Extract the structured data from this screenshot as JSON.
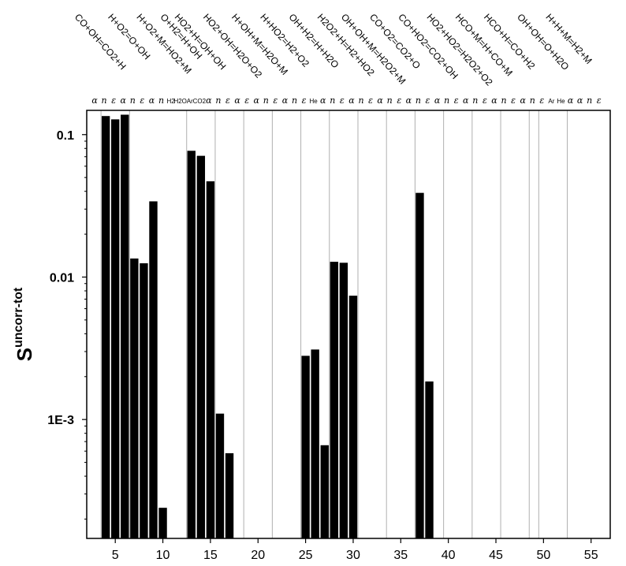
{
  "chart_data": {
    "type": "bar",
    "ylabel": "S",
    "ylabel_superscript": "uncorr-tot",
    "y_scale": "log",
    "ylim": [
      0.0002,
      0.15
    ],
    "xlim": [
      2,
      56
    ],
    "x_ticks": [
      5,
      10,
      15,
      20,
      25,
      30,
      35,
      40,
      45,
      50,
      55
    ],
    "x_tick_labels": [
      "5",
      "10",
      "15",
      "20",
      "25",
      "30",
      "35",
      "40",
      "45",
      "50",
      "55"
    ],
    "y_ticks": [
      0.001,
      0.01,
      0.1
    ],
    "y_tick_labels": [
      "1E-3",
      "0.01",
      "0.1"
    ],
    "grid": "vertical separators",
    "x": [
      4,
      5,
      6,
      7,
      8,
      9,
      10,
      13,
      14,
      15,
      16,
      17,
      25,
      26,
      27,
      28,
      29,
      30,
      37,
      38
    ],
    "values": [
      0.135,
      0.128,
      0.138,
      0.0135,
      0.0125,
      0.034,
      0.00024,
      0.077,
      0.071,
      0.047,
      0.0011,
      0.00058,
      0.0028,
      0.0031,
      0.00066,
      0.0128,
      0.0126,
      0.0074,
      0.039,
      0.00185
    ],
    "separators": [
      3.5,
      6.5,
      12.5,
      15.5,
      18.5,
      21.5,
      24.5,
      27.5,
      30.5,
      33.5,
      36.5,
      39.5,
      42.5,
      45.5,
      48.5,
      49.5,
      52.5
    ],
    "parameters": [
      {
        "x": 3,
        "label": "α"
      },
      {
        "x": 4,
        "label": "n"
      },
      {
        "x": 5,
        "label": "ε"
      },
      {
        "x": 6,
        "label": "α"
      },
      {
        "x": 7,
        "label": "n"
      },
      {
        "x": 8,
        "label": "ε"
      },
      {
        "x": 9,
        "label": "α"
      },
      {
        "x": 10,
        "label": "n"
      },
      {
        "x": 11,
        "label": "H2",
        "small": true
      },
      {
        "x": 12,
        "label": "H2O",
        "small": true
      },
      {
        "x": 13,
        "label": "Ar",
        "small": true
      },
      {
        "x": 14,
        "label": "CO2",
        "small": true
      },
      {
        "x": 15,
        "label": "α"
      },
      {
        "x": 16,
        "label": "n"
      },
      {
        "x": 17,
        "label": "ε"
      },
      {
        "x": 18,
        "label": "α"
      },
      {
        "x": 19,
        "label": "ε"
      },
      {
        "x": 20,
        "label": "α"
      },
      {
        "x": 21,
        "label": "n"
      },
      {
        "x": 22,
        "label": "ε"
      },
      {
        "x": 23,
        "label": "α"
      },
      {
        "x": 24,
        "label": "n"
      },
      {
        "x": 25,
        "label": "ε"
      },
      {
        "x": 26,
        "label": "He",
        "small": true
      },
      {
        "x": 27,
        "label": "α"
      },
      {
        "x": 28,
        "label": "n"
      },
      {
        "x": 29,
        "label": "ε"
      },
      {
        "x": 30,
        "label": "α"
      },
      {
        "x": 31,
        "label": "n"
      },
      {
        "x": 32,
        "label": "ε"
      },
      {
        "x": 33,
        "label": "α"
      },
      {
        "x": 34,
        "label": "n"
      },
      {
        "x": 35,
        "label": "ε"
      },
      {
        "x": 36,
        "label": "α"
      },
      {
        "x": 37,
        "label": "n"
      },
      {
        "x": 38,
        "label": "ε"
      },
      {
        "x": 39,
        "label": "α"
      },
      {
        "x": 40,
        "label": "n"
      },
      {
        "x": 41,
        "label": "ε"
      },
      {
        "x": 42,
        "label": "α"
      },
      {
        "x": 43,
        "label": "n"
      },
      {
        "x": 44,
        "label": "ε"
      },
      {
        "x": 45,
        "label": "α"
      },
      {
        "x": 46,
        "label": "n"
      },
      {
        "x": 47,
        "label": "ε"
      },
      {
        "x": 48,
        "label": "α"
      },
      {
        "x": 49,
        "label": "n"
      },
      {
        "x": 50,
        "label": "ε"
      },
      {
        "x": 51,
        "label": "Ar",
        "small": true
      },
      {
        "x": 52,
        "label": "He",
        "small": true
      },
      {
        "x": 53,
        "label": "α"
      },
      {
        "x": 54,
        "label": "α"
      },
      {
        "x": 55,
        "label": "n"
      },
      {
        "x": 56,
        "label": "ε"
      },
      {
        "x": 57,
        "label": "α"
      },
      {
        "x": 58,
        "label": "n"
      },
      {
        "x": 59,
        "label": "ε"
      }
    ],
    "reactions": [
      {
        "x": 4,
        "label": "CO+OH=CO2+H"
      },
      {
        "x": 7.5,
        "label": "H+O2=O+OH"
      },
      {
        "x": 10.5,
        "label": "H+O2+M=HO2+M"
      },
      {
        "x": 13,
        "label": "O+H2=H+OH"
      },
      {
        "x": 14.5,
        "label": "HO2+H=OH+OH"
      },
      {
        "x": 17.5,
        "label": "HO2+OH=H2O+O2"
      },
      {
        "x": 20.5,
        "label": "H+OH+M=H2O+M"
      },
      {
        "x": 23.5,
        "label": "H+HO2=H2+O2"
      },
      {
        "x": 26.5,
        "label": "OH+H2=H+H2O"
      },
      {
        "x": 29.5,
        "label": "H2O2+H=H2+HO2"
      },
      {
        "x": 32,
        "label": "OH+OH+M=H2O2+M"
      },
      {
        "x": 35,
        "label": "CO+O2=CO2+O"
      },
      {
        "x": 38,
        "label": "CO+HO2=CO2+OH"
      },
      {
        "x": 41,
        "label": "HO2+HO2=H2O2+O2"
      },
      {
        "x": 44,
        "label": "HCO+M=H+CO+M"
      },
      {
        "x": 47,
        "label": "HCO+H=CO+H2"
      },
      {
        "x": 50.5,
        "label": "OH+OH=O+H2O"
      },
      {
        "x": 53.5,
        "label": "H+H+M=H2+M"
      }
    ]
  }
}
